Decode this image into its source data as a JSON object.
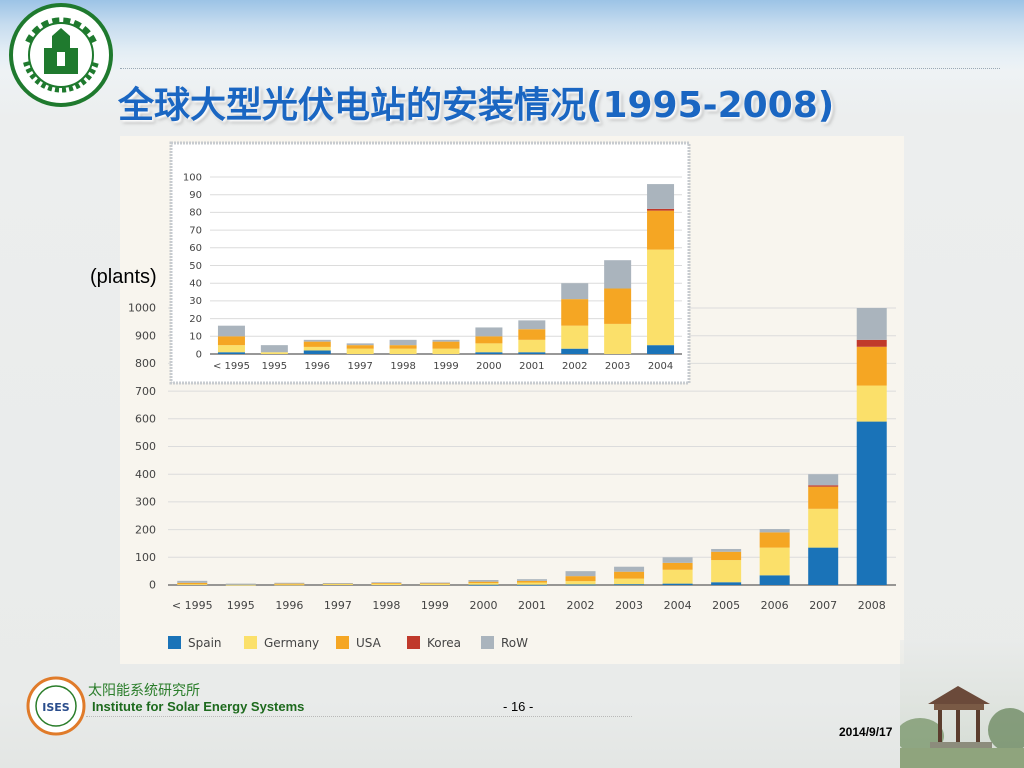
{
  "slide": {
    "title": "全球大型光伏电站的安装情况(1995-2008)",
    "unit_label": "(plants)",
    "institute_cn": "太阳能系统研究所",
    "institute_en": "Institute for Solar Energy Systems",
    "page_number": "- 16 -",
    "date": "2014/9/17",
    "ises_logo_text": "ISES",
    "colors": {
      "title": "#1a66c2",
      "institute": "#2a7d2a",
      "spain": "#1a73b8",
      "germany": "#fbe06a",
      "usa": "#f5a623",
      "korea": "#c0392b",
      "row": "#aab4bd"
    }
  },
  "chart_data": [
    {
      "type": "bar",
      "stacked": true,
      "categories": [
        "< 1995",
        "1995",
        "1996",
        "1997",
        "1998",
        "1999",
        "2000",
        "2001",
        "2002",
        "2003",
        "2004",
        "2005",
        "2006",
        "2007",
        "2008"
      ],
      "yticks": [
        0,
        100,
        200,
        300,
        400,
        500,
        600,
        700,
        800,
        900,
        1000
      ],
      "ylim": [
        0,
        1000
      ],
      "grid": true,
      "legend_position": "bottom",
      "series": [
        {
          "name": "Spain",
          "color": "#1a73b8",
          "values": [
            0,
            0,
            0,
            0,
            0,
            0,
            1,
            1,
            2,
            3,
            5,
            10,
            35,
            135,
            590
          ]
        },
        {
          "name": "Germany",
          "color": "#fbe06a",
          "values": [
            3,
            1,
            2,
            4,
            4,
            4,
            6,
            8,
            12,
            20,
            50,
            80,
            100,
            140,
            130
          ]
        },
        {
          "name": "USA",
          "color": "#f5a623",
          "values": [
            5,
            0,
            3,
            2,
            3,
            4,
            5,
            6,
            18,
            25,
            25,
            30,
            55,
            80,
            140
          ]
        },
        {
          "name": "Korea",
          "color": "#c0392b",
          "values": [
            0,
            0,
            0,
            0,
            0,
            0,
            0,
            0,
            0,
            0,
            0,
            0,
            0,
            5,
            25
          ]
        },
        {
          "name": "RoW",
          "color": "#aab4bd",
          "values": [
            7,
            4,
            3,
            1,
            3,
            1,
            6,
            6,
            18,
            18,
            20,
            10,
            12,
            40,
            115
          ]
        }
      ]
    },
    {
      "type": "bar",
      "stacked": true,
      "inset": true,
      "categories": [
        "< 1995",
        "1995",
        "1996",
        "1997",
        "1998",
        "1999",
        "2000",
        "2001",
        "2002",
        "2003",
        "2004"
      ],
      "yticks": [
        0,
        10,
        20,
        30,
        40,
        50,
        60,
        70,
        80,
        90,
        100
      ],
      "ylim": [
        0,
        100
      ],
      "grid": true,
      "series": [
        {
          "name": "Spain",
          "color": "#1a73b8",
          "values": [
            1,
            0,
            2,
            0,
            0,
            0,
            1,
            1,
            3,
            0,
            5
          ]
        },
        {
          "name": "Germany",
          "color": "#fbe06a",
          "values": [
            4,
            1,
            2,
            3,
            3,
            3,
            5,
            7,
            13,
            17,
            54
          ]
        },
        {
          "name": "USA",
          "color": "#f5a623",
          "values": [
            5,
            0,
            3,
            2,
            2,
            4,
            4,
            6,
            15,
            20,
            22
          ]
        },
        {
          "name": "Korea",
          "color": "#c0392b",
          "values": [
            0,
            0,
            0,
            0,
            0,
            0,
            0,
            0,
            0,
            0,
            1
          ]
        },
        {
          "name": "RoW",
          "color": "#aab4bd",
          "values": [
            6,
            4,
            1,
            1,
            3,
            1,
            5,
            5,
            9,
            16,
            14
          ]
        }
      ]
    }
  ]
}
